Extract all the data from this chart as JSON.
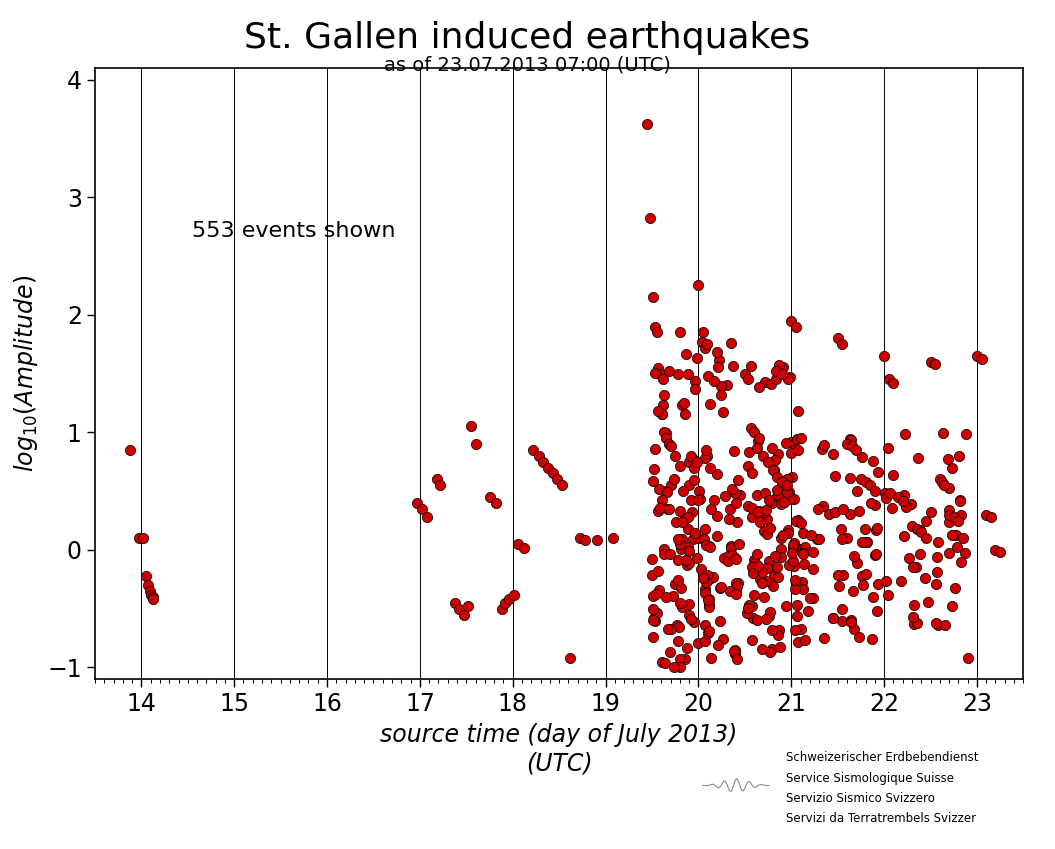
{
  "title": "St. Gallen induced earthquakes",
  "subtitle": "as of 23.07.2013 07:00 (UTC)",
  "annotation": "553 events shown",
  "xlabel_line1": "source time (day of July 2013)",
  "xlabel_line2": "(UTC)",
  "ylabel": "log₁₀(Amplitude)",
  "xlim": [
    13.5,
    23.5
  ],
  "ylim": [
    -1.1,
    4.1
  ],
  "xticks": [
    14,
    15,
    16,
    17,
    18,
    19,
    20,
    21,
    22,
    23
  ],
  "yticks": [
    -1,
    0,
    1,
    2,
    3,
    4
  ],
  "vlines": [
    14,
    15,
    16,
    17,
    18,
    19,
    20,
    21,
    22,
    23
  ],
  "dot_color": "#CC0000",
  "dot_edgecolor": "#000000",
  "dot_size": 55,
  "background_color": "#ffffff",
  "title_fontsize": 26,
  "subtitle_fontsize": 14,
  "axis_label_fontsize": 17,
  "tick_fontsize": 17,
  "annotation_fontsize": 16,
  "logo_text_lines": [
    "Schweizerischer Erdbebendienst",
    "Service Sismologique Suisse",
    "Servizio Sismico Svizzero",
    "Servizi da Terratrembels Svizzer"
  ],
  "logo_font_size": 8.5
}
